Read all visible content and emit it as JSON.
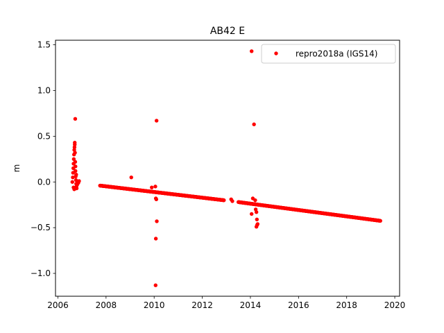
{
  "chart_data": {
    "type": "scatter",
    "title": "AB42 E",
    "xlabel": "",
    "ylabel": "m",
    "xlim": [
      2005.9,
      2020.2
    ],
    "ylim": [
      -1.25,
      1.55
    ],
    "xticks": [
      2006,
      2008,
      2010,
      2012,
      2014,
      2016,
      2018,
      2020
    ],
    "xtick_labels": [
      "2006",
      "2008",
      "2010",
      "2012",
      "2014",
      "2016",
      "2018",
      "2020"
    ],
    "yticks": [
      -1.0,
      -0.5,
      0.0,
      0.5,
      1.0,
      1.5
    ],
    "ytick_labels": [
      "−1.0",
      "−0.5",
      "0.0",
      "0.5",
      "1.0",
      "1.5"
    ],
    "grid": false,
    "legend_position": "upper right",
    "series": [
      {
        "name": "repro2018a (IGS14)",
        "color": "#ff0000",
        "trend": {
          "segments": [
            {
              "x_start": 2007.75,
              "x_end": 2012.9,
              "y_start": -0.04,
              "y_end": -0.2
            },
            {
              "x_start": 2013.5,
              "x_end": 2019.4,
              "y_start": -0.22,
              "y_end": -0.425
            }
          ]
        },
        "points": [
          {
            "x": 2006.6,
            "y": 0.0
          },
          {
            "x": 2006.62,
            "y": 0.05
          },
          {
            "x": 2006.63,
            "y": 0.1
          },
          {
            "x": 2006.64,
            "y": 0.15
          },
          {
            "x": 2006.65,
            "y": 0.2
          },
          {
            "x": 2006.66,
            "y": 0.25
          },
          {
            "x": 2006.67,
            "y": 0.3
          },
          {
            "x": 2006.68,
            "y": 0.35
          },
          {
            "x": 2006.69,
            "y": 0.38
          },
          {
            "x": 2006.7,
            "y": 0.41
          },
          {
            "x": 2006.7,
            "y": 0.43
          },
          {
            "x": 2006.71,
            "y": 0.32
          },
          {
            "x": 2006.72,
            "y": 0.22
          },
          {
            "x": 2006.73,
            "y": 0.12
          },
          {
            "x": 2006.74,
            "y": 0.06
          },
          {
            "x": 2006.75,
            "y": 0.02
          },
          {
            "x": 2006.76,
            "y": -0.02
          },
          {
            "x": 2006.77,
            "y": -0.05
          },
          {
            "x": 2006.78,
            "y": -0.07
          },
          {
            "x": 2006.8,
            "y": -0.03
          },
          {
            "x": 2006.82,
            "y": 0.0
          },
          {
            "x": 2006.85,
            "y": -0.01
          },
          {
            "x": 2006.88,
            "y": 0.01
          },
          {
            "x": 2006.65,
            "y": -0.06
          },
          {
            "x": 2006.68,
            "y": -0.08
          },
          {
            "x": 2006.73,
            "y": 0.17
          },
          {
            "x": 2006.76,
            "y": 0.08
          },
          {
            "x": 2006.72,
            "y": 0.69
          },
          {
            "x": 2009.05,
            "y": 0.05
          },
          {
            "x": 2009.9,
            "y": -0.06
          },
          {
            "x": 2010.05,
            "y": -0.05
          },
          {
            "x": 2010.07,
            "y": -0.18
          },
          {
            "x": 2010.09,
            "y": -0.19
          },
          {
            "x": 2010.1,
            "y": 0.67
          },
          {
            "x": 2010.11,
            "y": -0.43
          },
          {
            "x": 2010.07,
            "y": -0.62
          },
          {
            "x": 2010.06,
            "y": -1.13
          },
          {
            "x": 2013.2,
            "y": -0.19
          },
          {
            "x": 2013.25,
            "y": -0.21
          },
          {
            "x": 2014.05,
            "y": 1.43
          },
          {
            "x": 2014.15,
            "y": 0.63
          },
          {
            "x": 2014.1,
            "y": -0.18
          },
          {
            "x": 2014.2,
            "y": -0.2
          },
          {
            "x": 2014.22,
            "y": -0.3
          },
          {
            "x": 2014.25,
            "y": -0.33
          },
          {
            "x": 2014.05,
            "y": -0.35
          },
          {
            "x": 2014.27,
            "y": -0.41
          },
          {
            "x": 2014.28,
            "y": -0.47
          },
          {
            "x": 2014.3,
            "y": -0.46
          },
          {
            "x": 2014.25,
            "y": -0.49
          }
        ]
      }
    ]
  }
}
